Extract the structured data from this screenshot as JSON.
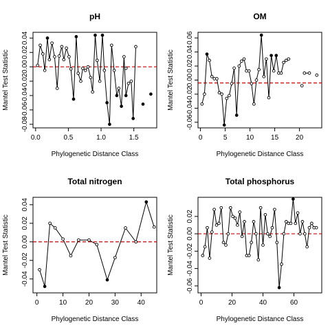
{
  "chart_data": [
    {
      "type": "line",
      "title": "pH",
      "xlabel": "Phylogenetic Distance Class",
      "ylabel": "Mantel Test Statistic",
      "xlim": [
        -0.04,
        1.85
      ],
      "ylim": [
        -0.085,
        0.048
      ],
      "xticks": [
        0.0,
        0.5,
        1.0,
        1.5
      ],
      "xtick_labels": [
        "0.0",
        "0.5",
        "1.0",
        "1.5"
      ],
      "yticks": [
        -0.08,
        -0.06,
        -0.04,
        -0.02,
        0.0,
        0.02,
        0.04
      ],
      "ytick_labels": [
        "-0.08",
        "-0.06",
        "-0.04",
        "-0.02",
        "0.00",
        "0.02",
        "0.04"
      ],
      "reference_line": {
        "y": 0,
        "color": "#cc0000",
        "style": "dashed"
      },
      "segments": [
        {
          "x": [
            0.03,
            0.07,
            0.11,
            0.14,
            0.18,
            0.21,
            0.25,
            0.29,
            0.33,
            0.36,
            0.4,
            0.43,
            0.47,
            0.51,
            0.54,
            0.58,
            0.62,
            0.65,
            0.69,
            0.72,
            0.76,
            0.8,
            0.84,
            0.87,
            0.91,
            0.94,
            0.98,
            1.02,
            1.05,
            1.09,
            1.13,
            1.16,
            1.2,
            1.24,
            1.27,
            1.31,
            1.35,
            1.38,
            1.42,
            1.46,
            1.49,
            1.53
          ],
          "y": [
            0.002,
            0.03,
            0.018,
            -0.005,
            0.04,
            0.01,
            0.033,
            0.014,
            -0.03,
            0.015,
            0.028,
            0.01,
            0.026,
            0.014,
            -0.003,
            -0.045,
            0.042,
            -0.009,
            -0.02,
            -0.002,
            -0.005,
            0.0,
            -0.015,
            -0.035,
            0.044,
            0.009,
            -0.02,
            0.044,
            -0.005,
            -0.05,
            -0.08,
            0.03,
            -0.005,
            -0.04,
            -0.03,
            -0.055,
            0.014,
            -0.04,
            -0.023,
            -0.02,
            -0.072,
            0.028
          ]
        },
        {
          "x": [
            1.38
          ],
          "y": [
            -0.002
          ]
        },
        {
          "x": [
            1.64
          ],
          "y": [
            -0.052
          ]
        },
        {
          "x": [
            1.76
          ],
          "y": [
            -0.038
          ]
        }
      ]
    },
    {
      "type": "line",
      "title": "OM",
      "xlabel": "Phylogenetic Distance Class",
      "ylabel": "Mantel Test Statistic",
      "xlim": [
        -0.5,
        24.5
      ],
      "ylim": [
        -0.068,
        0.068
      ],
      "xticks": [
        0,
        5,
        10,
        15,
        20
      ],
      "xtick_labels": [
        "0",
        "5",
        "10",
        "15",
        "20"
      ],
      "yticks": [
        -0.06,
        -0.04,
        -0.02,
        0.0,
        0.02,
        0.04,
        0.06
      ],
      "ytick_labels": [
        "-0.06",
        "-0.04",
        "-0.02",
        "0.00",
        "0.02",
        "0.04",
        "0.06"
      ],
      "reference_line": {
        "y": -0.004,
        "color": "#cc0000",
        "style": "dashed"
      },
      "segments": [
        {
          "x": [
            0.3,
            0.8,
            1.3,
            1.8,
            2.3,
            2.8,
            3.3,
            3.8,
            4.3,
            4.8,
            5.3,
            5.8,
            6.3,
            6.8,
            7.3,
            7.8,
            8.3,
            8.8,
            9.3,
            9.8,
            10.3,
            10.8,
            11.3,
            11.8,
            12.3,
            12.8,
            13.3,
            13.8,
            14.3,
            14.8,
            15.3,
            15.8,
            16.3,
            16.8,
            17.3,
            17.8
          ],
          "y": [
            -0.034,
            -0.02,
            0.037,
            0.028,
            0.005,
            0.002,
            0.002,
            -0.018,
            -0.02,
            -0.064,
            -0.026,
            -0.022,
            -0.005,
            0.017,
            -0.05,
            0.02,
            0.027,
            0.03,
            0.013,
            0.013,
            -0.005,
            -0.034,
            0.0,
            0.015,
            0.064,
            0.005,
            0.03,
            -0.025,
            0.035,
            0.013,
            0.035,
            0.01,
            0.01,
            0.025,
            0.028,
            0.03
          ]
        },
        {
          "x": [
            20.5
          ],
          "y": [
            -0.008
          ]
        },
        {
          "x": [
            21.0,
            22.0
          ],
          "y": [
            0.01,
            0.01
          ]
        },
        {
          "x": [
            23.5
          ],
          "y": [
            0.007
          ]
        }
      ]
    },
    {
      "type": "line",
      "title": "Total nitrogen",
      "xlabel": "Phylogenetic Distance Class",
      "ylabel": "Mantel Test Statistic",
      "xlim": [
        -1.5,
        46
      ],
      "ylim": [
        -0.055,
        0.048
      ],
      "xticks": [
        0,
        10,
        20,
        30,
        40
      ],
      "xtick_labels": [
        "0",
        "10",
        "20",
        "30",
        "40"
      ],
      "yticks": [
        -0.04,
        -0.02,
        0.0,
        0.02,
        0.04
      ],
      "ytick_labels": [
        "-0.04",
        "-0.02",
        "0.00",
        "0.02",
        "0.04"
      ],
      "reference_line": {
        "y": 0,
        "color": "#cc0000",
        "style": "dashed"
      },
      "segments": [
        {
          "x": [
            1,
            3,
            5,
            7,
            10,
            13,
            16,
            20,
            23,
            27,
            30,
            34,
            38,
            42,
            45
          ],
          "y": [
            -0.03,
            -0.048,
            0.02,
            0.015,
            0.003,
            -0.015,
            0.002,
            0.002,
            -0.003,
            -0.041,
            -0.017,
            0.015,
            0.0,
            0.043,
            0.016
          ]
        }
      ]
    },
    {
      "type": "line",
      "title": "Total phosphorus",
      "xlabel": "Phylogenetic Distance Class",
      "ylabel": "Mantel Test Statistic",
      "xlim": [
        -2,
        78
      ],
      "ylim": [
        -0.068,
        0.042
      ],
      "xticks": [
        0,
        20,
        40,
        60
      ],
      "xtick_labels": [
        "0",
        "20",
        "40",
        "60"
      ],
      "yticks": [
        -0.06,
        -0.04,
        -0.02,
        0.0,
        0.02
      ],
      "ytick_labels": [
        "-0.06",
        "-0.04",
        "-0.02",
        "0.00",
        "0.02"
      ],
      "reference_line": {
        "y": 0,
        "color": "#cc0000",
        "style": "dashed"
      },
      "segments": [
        {
          "x": [
            1,
            2.5,
            4,
            5.5,
            7,
            8.5,
            10,
            11.5,
            13,
            14.5,
            16,
            17.5,
            19,
            20.5,
            22,
            23.5,
            25,
            26.5,
            28,
            29.5,
            31,
            32.5,
            34,
            35.5,
            37,
            38.5,
            40,
            41.5,
            43,
            44.5,
            46,
            47.5,
            49,
            50.5,
            52,
            53.5,
            55,
            56.5,
            58,
            59.5,
            61,
            62.5,
            64,
            65.5,
            67,
            68.5,
            70,
            71.5,
            73,
            74.5
          ],
          "y": [
            -0.025,
            -0.015,
            0.007,
            -0.028,
            0.002,
            0.028,
            0.01,
            0.012,
            0.03,
            -0.01,
            -0.013,
            0.0,
            0.03,
            0.02,
            0.018,
            0.01,
            0.025,
            -0.003,
            0.014,
            -0.025,
            -0.025,
            -0.01,
            0.014,
            0.0,
            -0.03,
            0.03,
            -0.013,
            0.022,
            0.0,
            -0.003,
            0.007,
            0.028,
            -0.01,
            -0.062,
            -0.035,
            0.0,
            0.014,
            0.012,
            0.012,
            0.04,
            0.012,
            0.024,
            0.0,
            0.014,
            0.0,
            -0.015,
            0.007,
            0.012,
            0.007,
            0.007
          ]
        }
      ]
    }
  ]
}
